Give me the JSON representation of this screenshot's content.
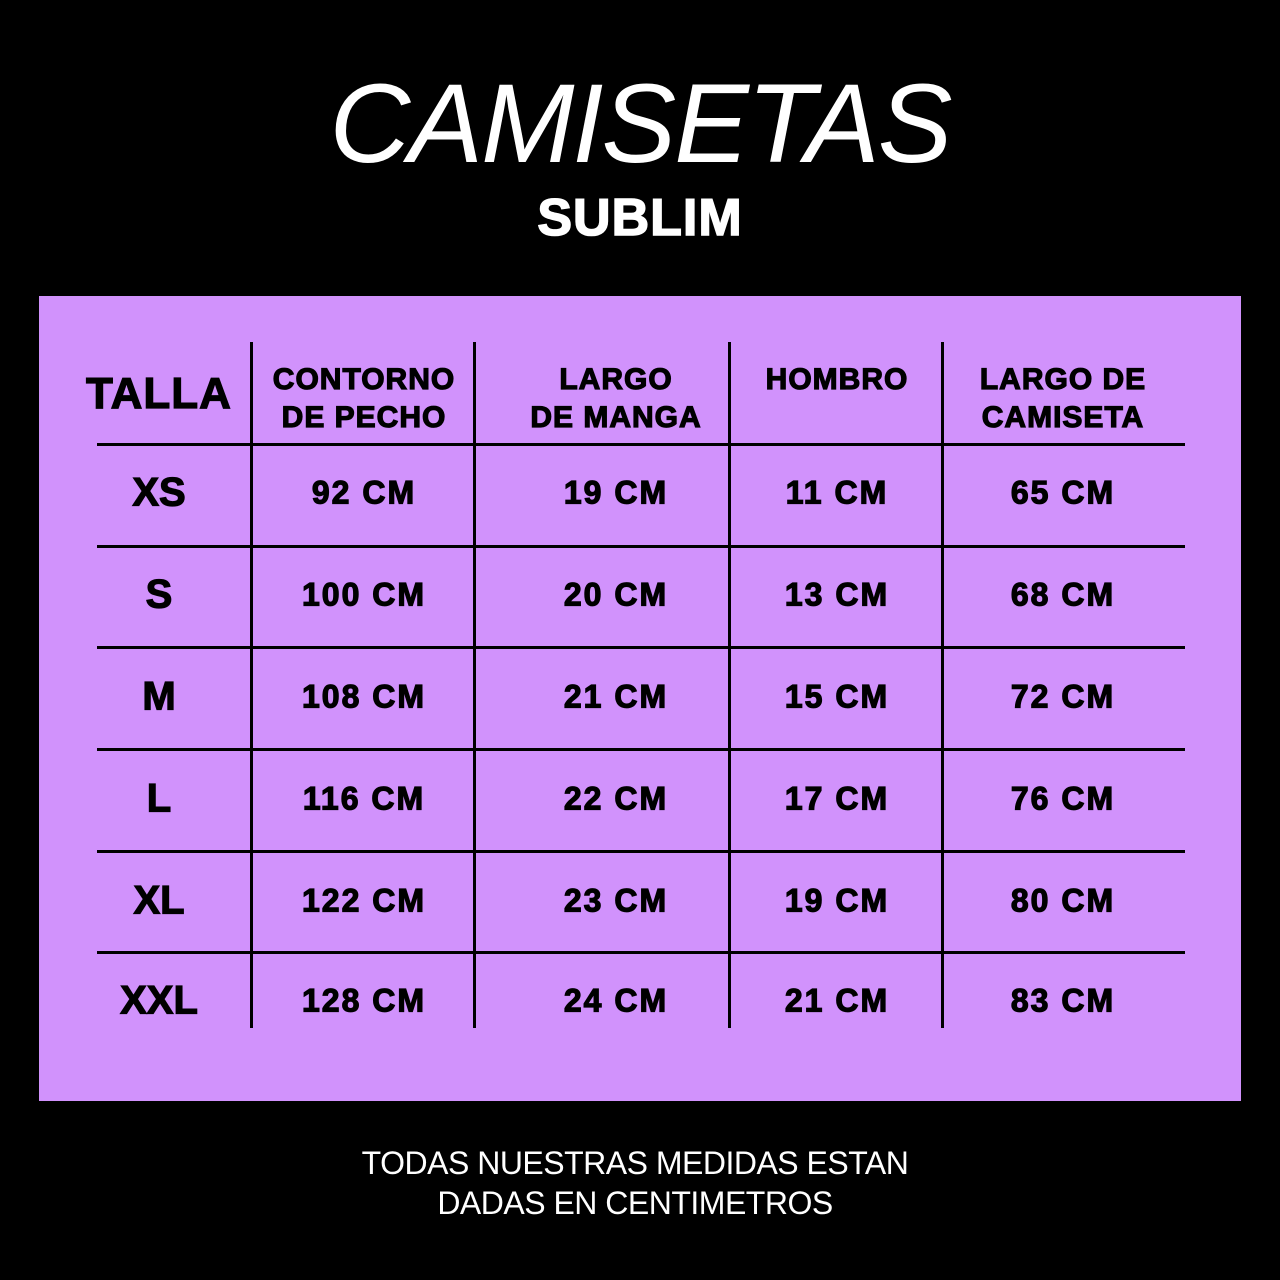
{
  "title": "CAMISETAS",
  "subtitle": "SUBLIM",
  "colors": {
    "background": "#000000",
    "panel": "#D192FC",
    "text": "#000000"
  },
  "table": {
    "headers": [
      "TALLA",
      "CONTORNO DE PECHO",
      "LARGO DE MANGA",
      "HOMBRO",
      "LARGO DE CAMISETA"
    ],
    "header_lines": [
      [
        "TALLA"
      ],
      [
        "CONTORNO",
        "DE PECHO"
      ],
      [
        "LARGO",
        "DE MANGA"
      ],
      [
        "HOMBRO"
      ],
      [
        "LARGO DE",
        "CAMISETA"
      ]
    ],
    "rows": [
      [
        "XS",
        "92 CM",
        "19 CM",
        "11 CM",
        "65 CM"
      ],
      [
        "S",
        "100 CM",
        "20 CM",
        "13 CM",
        "68 CM"
      ],
      [
        "M",
        "108 CM",
        "21 CM",
        "15 CM",
        "72 CM"
      ],
      [
        "L",
        "116 CM",
        "22 CM",
        "17 CM",
        "76 CM"
      ],
      [
        "XL",
        "122 CM",
        "23 CM",
        "19 CM",
        "80 CM"
      ],
      [
        "XXL",
        "128 CM",
        "24 CM",
        "21 CM",
        "83 CM"
      ]
    ]
  },
  "footer": {
    "line1": "TODAS NUESTRAS MEDIDAS ESTAN",
    "line2": "DADAS EN CENTIMETROS"
  }
}
